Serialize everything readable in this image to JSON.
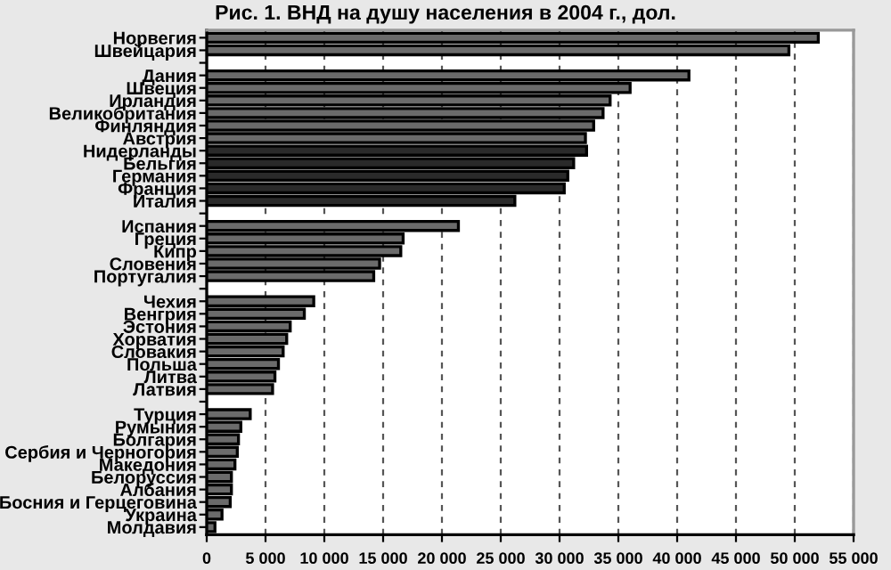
{
  "chart_data": {
    "type": "bar",
    "orientation": "horizontal",
    "title": "Рис. 1. ВНД на душу населения в 2004 г., дол.",
    "categories": [
      "Норвегия",
      "Швейцария",
      null,
      "Дания",
      "Швеция",
      "Ирландия",
      "Великобритания",
      "Финляндия",
      "Австрия",
      "Нидерланды",
      "Бельгия",
      "Германия",
      "Франция",
      "Италия",
      null,
      "Испания",
      "Греция",
      "Кипр",
      "Словения",
      "Португалия",
      null,
      "Чехия",
      "Венгрия",
      "Эстония",
      "Хорватия",
      "Словакия",
      "Польша",
      "Литва",
      "Латвия",
      null,
      "Турция",
      "Румыния",
      "Болгария",
      "Сербия и Черногория",
      "Македония",
      "Белоруссия",
      "Албания",
      "Босния и Герцеговина",
      "Украина",
      "Молдавия"
    ],
    "values": [
      52000,
      49500,
      null,
      41000,
      36000,
      34300,
      33700,
      32900,
      32200,
      32300,
      31200,
      30700,
      30400,
      26200,
      null,
      21400,
      16700,
      16500,
      14700,
      14200,
      null,
      9100,
      8300,
      7100,
      6800,
      6500,
      6100,
      5800,
      5600,
      null,
      3700,
      2900,
      2700,
      2600,
      2400,
      2100,
      2100,
      2000,
      1300,
      700
    ],
    "colors": [
      "#6b6b6b",
      "#6b6b6b",
      null,
      "#6b6b6b",
      "#6b6b6b",
      "#6b6b6b",
      "#6b6b6b",
      "#6b6b6b",
      "#6b6b6b",
      "#2a2a2a",
      "#2a2a2a",
      "#2a2a2a",
      "#2a2a2a",
      "#2a2a2a",
      null,
      "#6b6b6b",
      "#6b6b6b",
      "#6b6b6b",
      "#6b6b6b",
      "#6b6b6b",
      null,
      "#6b6b6b",
      "#6b6b6b",
      "#6b6b6b",
      "#6b6b6b",
      "#6b6b6b",
      "#6b6b6b",
      "#6b6b6b",
      "#6b6b6b",
      null,
      "#6b6b6b",
      "#6b6b6b",
      "#6b6b6b",
      "#6b6b6b",
      "#6b6b6b",
      "#6b6b6b",
      "#6b6b6b",
      "#6b6b6b",
      "#6b6b6b",
      "#6b6b6b"
    ],
    "xlim": [
      0,
      55000
    ],
    "xticks": [
      0,
      {
        "value": 5000,
        "label": "5 000"
      },
      {
        "value": 10000,
        "label": "10 000"
      },
      {
        "value": 15000,
        "label": "15 000"
      },
      {
        "value": 20000,
        "label": "20 000"
      },
      {
        "value": 25000,
        "label": "25 000"
      },
      {
        "value": 30000,
        "label": "30 000"
      },
      {
        "value": 35000,
        "label": "35 000"
      },
      {
        "value": 40000,
        "label": "40 000"
      },
      {
        "value": 45000,
        "label": "45 000"
      },
      {
        "value": 50000,
        "label": "50 000"
      },
      {
        "value": 55000,
        "label": "55 000"
      }
    ],
    "grid": "x",
    "legend": false
  }
}
